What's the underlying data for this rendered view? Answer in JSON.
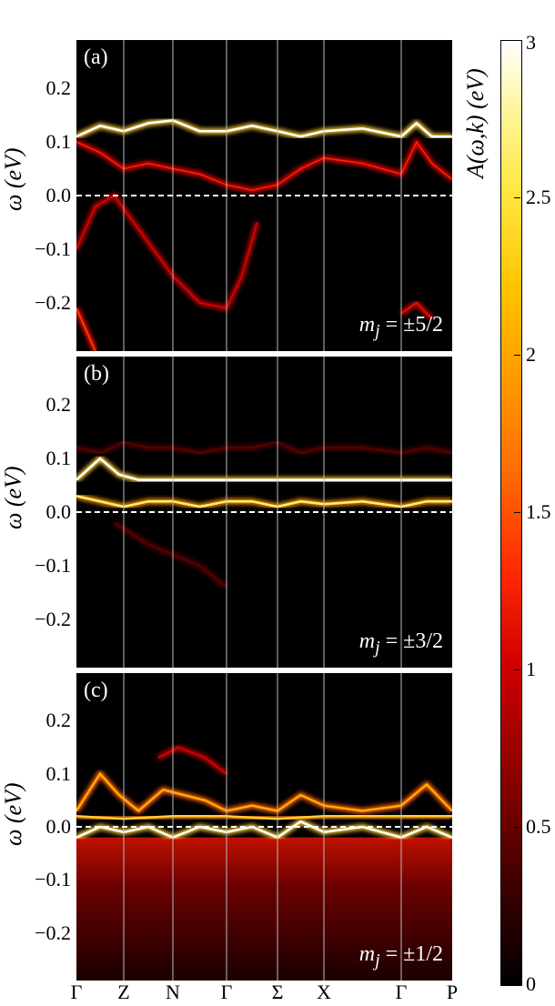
{
  "chart_data": {
    "type": "heatmap",
    "title": "",
    "k_path": [
      "Γ",
      "Z",
      "N",
      "Γ",
      "Σ",
      "X",
      "Γ",
      "P"
    ],
    "ylabel": "ω (eV)",
    "ylim": [
      -0.29,
      0.29
    ],
    "yticks": [
      "0.2",
      "0.1",
      "0.0",
      "−0.1",
      "−0.2"
    ],
    "fermi_level_eV": 0.0,
    "colorbar": {
      "label": "A(ω,k) (eV)",
      "range": [
        0,
        3
      ],
      "ticks": [
        "0",
        "0.5",
        "1",
        "1.5",
        "2",
        "2.5",
        "3"
      ],
      "colormap": "hot"
    },
    "panels": [
      {
        "label": "(a)",
        "annotation": "m_j = ±5/2",
        "mj_prefix": "m",
        "mj_sub": "j",
        "mj_value": " = ±5/2",
        "bands": [
          {
            "k": [
              0,
              0.5,
              1,
              1.5,
              2,
              2.5,
              3,
              3.5,
              4,
              4.5,
              5,
              5.5,
              6,
              6.3,
              6.6,
              7
            ],
            "e": [
              0.11,
              0.13,
              0.12,
              0.135,
              0.14,
              0.12,
              0.12,
              0.13,
              0.12,
              0.11,
              0.12,
              0.125,
              0.11,
              0.135,
              0.11,
              0.11
            ],
            "i": 3.0
          },
          {
            "k": [
              0,
              0.5,
              1,
              1.5,
              2,
              2.5,
              3,
              3.5,
              4,
              4.5,
              5,
              5.5,
              6,
              6.3,
              6.6,
              7
            ],
            "e": [
              0.1,
              0.08,
              0.05,
              0.06,
              0.05,
              0.04,
              0.02,
              0.01,
              0.02,
              0.05,
              0.07,
              0.06,
              0.04,
              0.1,
              0.06,
              0.03
            ],
            "i": 1.4
          },
          {
            "k": [
              0,
              0.4,
              0.8,
              1.2,
              1.6,
              2,
              2.5,
              3,
              3.3,
              3.6
            ],
            "e": [
              -0.1,
              -0.02,
              0.0,
              -0.05,
              -0.1,
              -0.15,
              -0.2,
              -0.21,
              -0.15,
              -0.05
            ],
            "i": 1.2
          },
          {
            "k": [
              0,
              0.2,
              0.4
            ],
            "e": [
              -0.21,
              -0.25,
              -0.29
            ],
            "i": 1.6
          },
          {
            "k": [
              6,
              6.3,
              6.6
            ],
            "e": [
              -0.22,
              -0.2,
              -0.23
            ],
            "i": 1.3
          }
        ]
      },
      {
        "label": "(b)",
        "annotation": "m_j = ±3/2",
        "mj_prefix": "m",
        "mj_sub": "j",
        "mj_value": " = ±3/2",
        "bands": [
          {
            "k": [
              0,
              0.5,
              0.9,
              1.3,
              2,
              3,
              4,
              5,
              6,
              6.5,
              7
            ],
            "e": [
              0.06,
              0.1,
              0.07,
              0.06,
              0.06,
              0.06,
              0.06,
              0.06,
              0.06,
              0.06,
              0.06
            ],
            "i": 3.0
          },
          {
            "k": [
              0,
              0.5,
              1,
              1.5,
              2,
              2.5,
              3,
              3.5,
              4,
              4.5,
              5,
              5.5,
              6,
              6.5,
              7
            ],
            "e": [
              0.03,
              0.02,
              0.01,
              0.02,
              0.02,
              0.01,
              0.02,
              0.02,
              0.01,
              0.02,
              0.015,
              0.02,
              0.01,
              0.02,
              0.02
            ],
            "i": 2.6
          },
          {
            "k": [
              0,
              0.5,
              1,
              1.5,
              2,
              2.5,
              3,
              3.5,
              4,
              4.5,
              5,
              5.5,
              6,
              6.5,
              7
            ],
            "e": [
              0.12,
              0.11,
              0.13,
              0.12,
              0.12,
              0.11,
              0.12,
              0.12,
              0.13,
              0.11,
              0.12,
              0.12,
              0.11,
              0.12,
              0.11
            ],
            "i": 0.5
          },
          {
            "k": [
              0.8,
              1.5,
              2.5,
              3.0
            ],
            "e": [
              -0.02,
              -0.06,
              -0.1,
              -0.14
            ],
            "i": 0.5
          }
        ]
      },
      {
        "label": "(c)",
        "annotation": "m_j = ±1/2",
        "mj_prefix": "m",
        "mj_sub": "j",
        "mj_value": " = ±1/2",
        "bands": [
          {
            "k": [
              0,
              0.5,
              1,
              1.5,
              2,
              2.5,
              3,
              3.5,
              4,
              4.5,
              5,
              5.5,
              6,
              6.5,
              7
            ],
            "e": [
              -0.02,
              0.0,
              -0.01,
              0.0,
              -0.02,
              0.0,
              -0.01,
              0.0,
              -0.02,
              0.01,
              -0.01,
              0.0,
              -0.02,
              0.0,
              -0.02
            ],
            "i": 3.0
          },
          {
            "k": [
              0,
              0.5,
              0.9,
              1.3,
              1.8,
              2.2,
              2.6,
              3,
              3.5,
              4,
              4.5,
              5,
              5.5,
              6,
              6.5,
              7
            ],
            "e": [
              0.03,
              0.1,
              0.06,
              0.03,
              0.07,
              0.06,
              0.05,
              0.03,
              0.04,
              0.03,
              0.06,
              0.04,
              0.03,
              0.04,
              0.08,
              0.03
            ],
            "i": 2.2
          },
          {
            "k": [
              1.7,
              2.1,
              2.6,
              3.0
            ],
            "e": [
              0.13,
              0.15,
              0.13,
              0.1
            ],
            "i": 1.2
          },
          {
            "k": [
              0,
              1,
              2,
              3,
              4,
              5,
              6,
              7
            ],
            "e": [
              0.02,
              0.015,
              0.02,
              0.02,
              0.015,
              0.02,
              0.02,
              0.02
            ],
            "i": 2.4
          }
        ]
      }
    ]
  }
}
